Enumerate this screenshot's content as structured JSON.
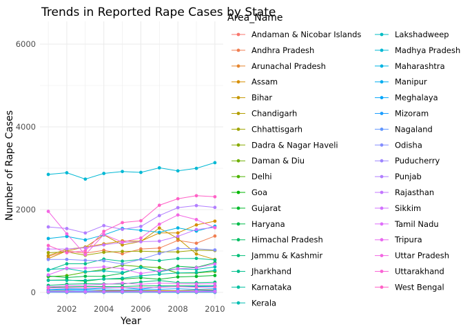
{
  "chart_data": {
    "type": "line",
    "title": "Trends in Reported Rape Cases by State",
    "xlabel": "Year",
    "ylabel": "Number of Rape Cases",
    "legend_title": "Area_Name",
    "legend_placement": "right",
    "grid": true,
    "xlim": [
      2001,
      2010
    ],
    "ylim": [
      0,
      6500
    ],
    "x_ticks": [
      2002,
      2004,
      2006,
      2008,
      2010
    ],
    "y_ticks": [
      0,
      2000,
      4000,
      6000
    ],
    "x_tick_labels": [
      "2002",
      "2004",
      "2006",
      "2008",
      "2010"
    ],
    "y_tick_labels": [
      "0",
      "2000",
      "4000",
      "6000"
    ],
    "x": [
      2001,
      2002,
      2003,
      2004,
      2005,
      2006,
      2007,
      2008,
      2009,
      2010
    ],
    "series": [
      {
        "name": "Andaman & Nicobar Islands",
        "color": "#F8766D",
        "values": [
          5,
          4,
          6,
          8,
          6,
          9,
          10,
          12,
          11,
          14
        ]
      },
      {
        "name": "Andhra Pradesh",
        "color": "#F07E51",
        "values": [
          871,
          1002,
          946,
          1016,
          935,
          1049,
          1070,
          1257,
          1188,
          1362
        ]
      },
      {
        "name": "Arunachal Pradesh",
        "color": "#E6862F",
        "values": [
          35,
          38,
          30,
          40,
          42,
          40,
          46,
          42,
          56,
          60
        ]
      },
      {
        "name": "Assam",
        "color": "#D78E00",
        "values": [
          817,
          1003,
          1095,
          1171,
          1244,
          1238,
          1437,
          1438,
          1631,
          1721
        ]
      },
      {
        "name": "Bihar",
        "color": "#C59700",
        "values": [
          888,
          1043,
          1091,
          1390,
          1147,
          1232,
          1555,
          1302,
          929,
          795
        ]
      },
      {
        "name": "Chandigarh",
        "color": "#B39E00",
        "values": [
          18,
          20,
          22,
          26,
          23,
          30,
          28,
          31,
          33,
          28
        ]
      },
      {
        "name": "Chhattisgarh",
        "color": "#9FA400",
        "values": [
          959,
          976,
          898,
          969,
          990,
          995,
          982,
          978,
          1022,
          1012
        ]
      },
      {
        "name": "Dadra & Nagar Haveli",
        "color": "#88AA00",
        "values": [
          4,
          3,
          5,
          4,
          6,
          4,
          5,
          6,
          4,
          5
        ]
      },
      {
        "name": "Daman & Diu",
        "color": "#6EAF00",
        "values": [
          2,
          3,
          2,
          3,
          2,
          3,
          4,
          3,
          2,
          3
        ]
      },
      {
        "name": "Delhi",
        "color": "#4DB300",
        "values": [
          381,
          403,
          490,
          551,
          658,
          623,
          598,
          466,
          469,
          507
        ]
      },
      {
        "name": "Goa",
        "color": "#00B700",
        "values": [
          15,
          18,
          20,
          22,
          24,
          26,
          28,
          30,
          32,
          36
        ]
      },
      {
        "name": "Gujarat",
        "color": "#00B92B",
        "values": [
          293,
          300,
          273,
          323,
          324,
          354,
          316,
          374,
          386,
          408
        ]
      },
      {
        "name": "Haryana",
        "color": "#00BB49",
        "values": [
          398,
          359,
          390,
          386,
          461,
          608,
          488,
          631,
          603,
          720
        ]
      },
      {
        "name": "Himachal Pradesh",
        "color": "#00BD61",
        "values": [
          123,
          134,
          141,
          142,
          141,
          157,
          159,
          160,
          157,
          160
        ]
      },
      {
        "name": "Jammu & Kashmir",
        "color": "#00BE77",
        "values": [
          169,
          198,
          209,
          203,
          201,
          250,
          288,
          238,
          235,
          245
        ]
      },
      {
        "name": "Jharkhand",
        "color": "#00BF8C",
        "values": [
          534,
          691,
          691,
          803,
          754,
          799,
          768,
          817,
          821,
          783
        ]
      },
      {
        "name": "Karnataka",
        "color": "#00BF9F",
        "values": [
          291,
          291,
          291,
          323,
          343,
          400,
          436,
          471,
          480,
          532
        ]
      },
      {
        "name": "Kerala",
        "color": "#00BEB2",
        "values": [
          554,
          576,
          500,
          521,
          478,
          601,
          500,
          568,
          554,
          617
        ]
      },
      {
        "name": "Lakshadweep",
        "color": "#00BCC3",
        "values": [
          0,
          0,
          1,
          0,
          0,
          1,
          0,
          0,
          1,
          0
        ]
      },
      {
        "name": "Madhya Pradesh",
        "color": "#00B8D4",
        "values": [
          2851,
          2891,
          2738,
          2875,
          2921,
          2900,
          3010,
          2937,
          2998,
          3135
        ]
      },
      {
        "name": "Maharashtra",
        "color": "#00B3E2",
        "values": [
          1302,
          1352,
          1268,
          1388,
          1545,
          1500,
          1451,
          1558,
          1482,
          1599
        ]
      },
      {
        "name": "Manipur",
        "color": "#00ADF0",
        "values": [
          30,
          28,
          35,
          18,
          24,
          30,
          18,
          27,
          35,
          45
        ]
      },
      {
        "name": "Meghalaya",
        "color": "#00A5FB",
        "values": [
          66,
          85,
          82,
          102,
          113,
          80,
          134,
          138,
          141,
          149
        ]
      },
      {
        "name": "Mizoram",
        "color": "#1C9EFF",
        "values": [
          60,
          62,
          65,
          58,
          57,
          61,
          75,
          88,
          74,
          90
        ]
      },
      {
        "name": "Nagaland",
        "color": "#6196FF",
        "values": [
          14,
          15,
          20,
          17,
          18,
          20,
          22,
          19,
          24,
          26
        ]
      },
      {
        "name": "Odisha",
        "color": "#848EFF",
        "values": [
          795,
          796,
          775,
          764,
          685,
          799,
          939,
          1060,
          1053,
          1025
        ]
      },
      {
        "name": "Puducherry",
        "color": "#9D85FF",
        "values": [
          7,
          8,
          6,
          7,
          9,
          8,
          7,
          10,
          9,
          8
        ]
      },
      {
        "name": "Punjab",
        "color": "#B17EFF",
        "values": [
          1582,
          1543,
          1436,
          1614,
          1524,
          1594,
          1856,
          2048,
          2098,
          2054
        ]
      },
      {
        "name": "Rajasthan",
        "color": "#C377FF",
        "values": [
          1049,
          1048,
          1076,
          1148,
          1208,
          1225,
          1238,
          1355,
          1519,
          1571
        ]
      },
      {
        "name": "Sikkim",
        "color": "#D272FF",
        "values": [
          16,
          20,
          17,
          18,
          19,
          20,
          23,
          26,
          24,
          28
        ]
      },
      {
        "name": "Tamil Nadu",
        "color": "#DF6EFA",
        "values": [
          423,
          584,
          587,
          618,
          571,
          457,
          523,
          573,
          596,
          686
        ]
      },
      {
        "name": "Tripura",
        "color": "#E969EF",
        "values": [
          133,
          162,
          170,
          192,
          226,
          196,
          225,
          208,
          204,
          208
        ]
      },
      {
        "name": "Uttar Pradesh",
        "color": "#F366E3",
        "values": [
          1958,
          1415,
          911,
          1397,
          1217,
          1314,
          1648,
          1871,
          1759,
          1563
        ]
      },
      {
        "name": "Uttarakhand",
        "color": "#FA64D5",
        "values": [
          101,
          112,
          114,
          116,
          112,
          117,
          120,
          140,
          125,
          132
        ]
      },
      {
        "name": "West Bengal",
        "color": "#FF61C6",
        "values": [
          1133,
          959,
          1002,
          1475,
          1686,
          1731,
          2106,
          2263,
          2336,
          2311
        ]
      }
    ]
  }
}
